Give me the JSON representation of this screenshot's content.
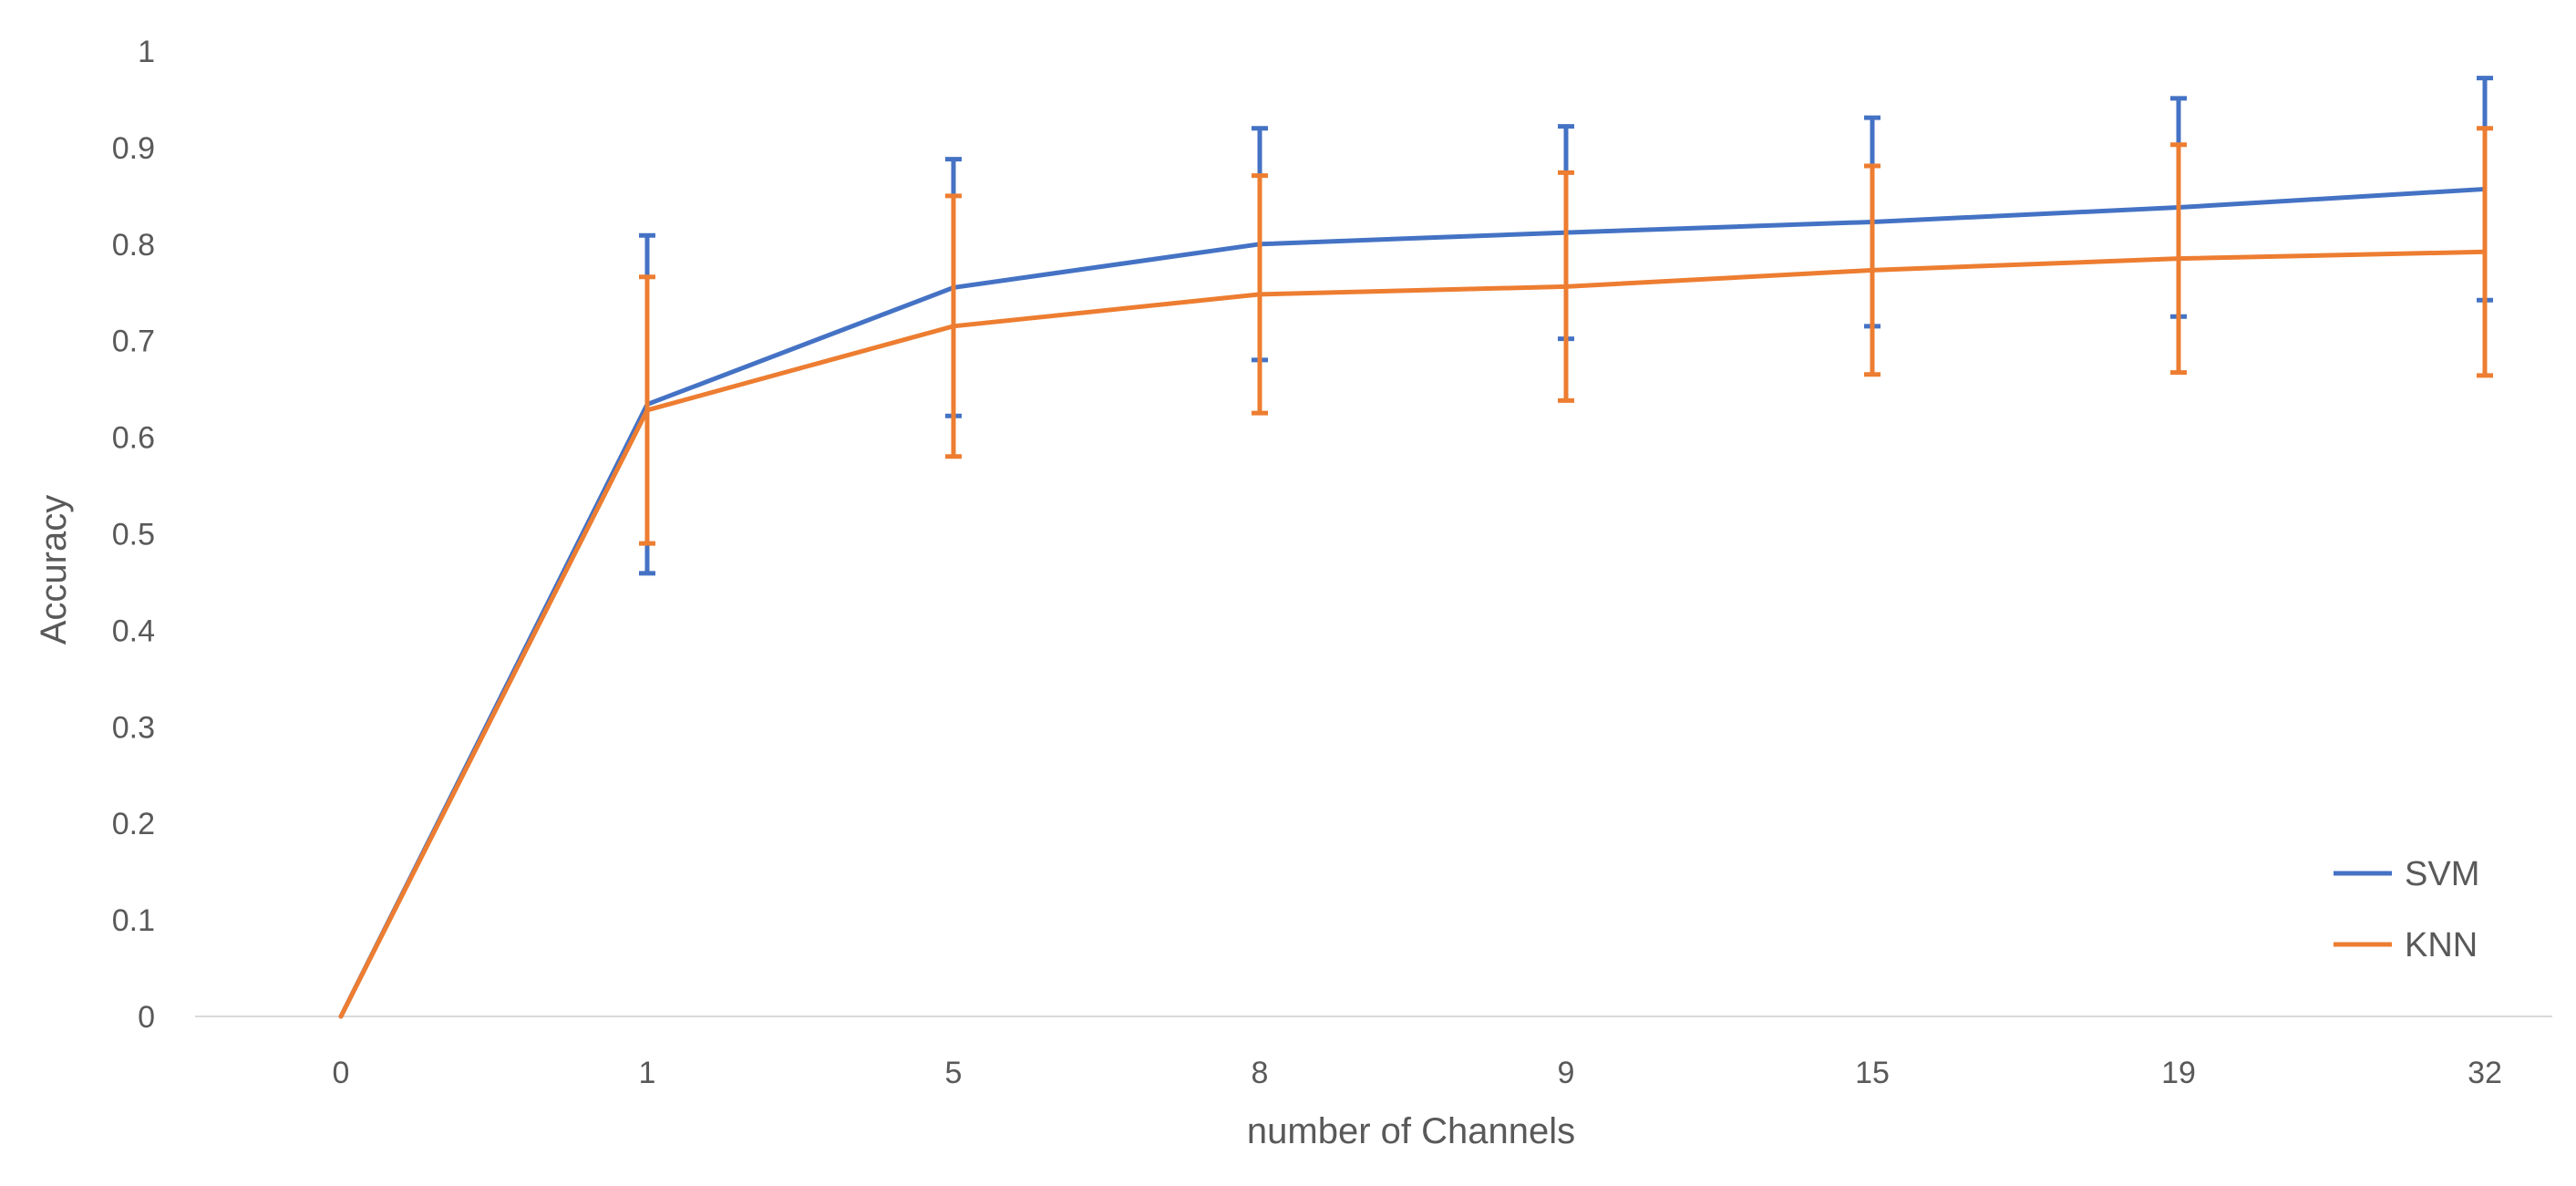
{
  "chart_data": {
    "type": "line",
    "title": "",
    "xlabel": "number of Channels",
    "ylabel": "Accuracy",
    "categories": [
      "0",
      "1",
      "5",
      "8",
      "9",
      "15",
      "19",
      "32"
    ],
    "ylim": [
      0,
      1
    ],
    "yticks": [
      0,
      0.1,
      0.2,
      0.3,
      0.4,
      0.5,
      0.6,
      0.7,
      0.8,
      0.9,
      1
    ],
    "ytick_labels": [
      "0",
      "0.1",
      "0.2",
      "0.3",
      "0.4",
      "0.5",
      "0.6",
      "0.7",
      "0.8",
      "0.9",
      "1"
    ],
    "grid": false,
    "legend": {
      "position": "bottom-right",
      "entries": [
        "SVM",
        "KNN"
      ]
    },
    "series": [
      {
        "name": "SVM",
        "color": "#4472C4",
        "values": [
          0,
          0.634,
          0.755,
          0.8,
          0.812,
          0.823,
          0.838,
          0.857
        ],
        "error": [
          null,
          0.175,
          0.133,
          0.12,
          0.11,
          0.108,
          0.113,
          0.115
        ]
      },
      {
        "name": "KNN",
        "color": "#ED7D31",
        "values": [
          0,
          0.628,
          0.715,
          0.748,
          0.756,
          0.773,
          0.785,
          0.792
        ],
        "error": [
          null,
          0.138,
          0.135,
          0.123,
          0.118,
          0.108,
          0.118,
          0.128
        ]
      }
    ]
  }
}
